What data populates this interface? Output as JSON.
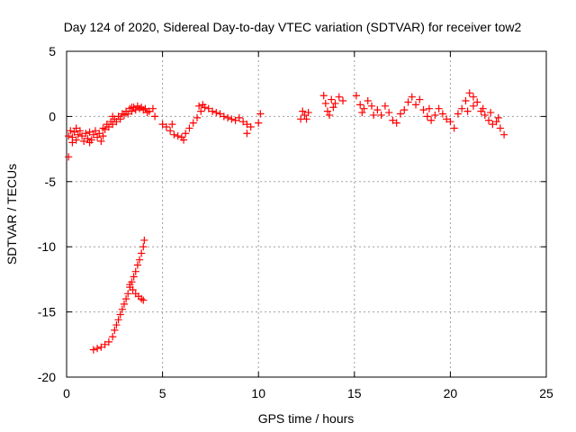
{
  "chart_data": {
    "type": "scatter",
    "title": "Day 124 of 2020, Sidereal Day-to-day VTEC variation (SDTVAR) for receiver tow2",
    "xlabel": "GPS time / hours",
    "ylabel": "SDTVAR / TECUs",
    "xlim": [
      0,
      25
    ],
    "ylim": [
      -20,
      5
    ],
    "xticks": [
      0,
      5,
      10,
      15,
      20,
      25
    ],
    "yticks": [
      -20,
      -15,
      -10,
      -5,
      0,
      5
    ],
    "xtick_labels": [
      "0",
      "5",
      "10",
      "15",
      "20",
      "25"
    ],
    "ytick_labels": [
      "-20",
      "-15",
      "-10",
      "-5",
      "0",
      "5"
    ],
    "grid": true,
    "marker": "plus",
    "series": [
      {
        "name": "main_trace",
        "color": "#ff0000",
        "points": [
          [
            0.1,
            -1.5
          ],
          [
            0.2,
            -1.1
          ],
          [
            0.3,
            -1.6
          ],
          [
            0.4,
            -1.2
          ],
          [
            0.5,
            -1.8
          ],
          [
            0.6,
            -1.4
          ],
          [
            0.7,
            -1.1
          ],
          [
            0.8,
            -1.5
          ],
          [
            0.9,
            -1.9
          ],
          [
            1.0,
            -1.3
          ],
          [
            1.1,
            -1.7
          ],
          [
            1.2,
            -1.2
          ],
          [
            1.3,
            -1.8
          ],
          [
            1.4,
            -1.4
          ],
          [
            1.5,
            -1.1
          ],
          [
            1.6,
            -1.6
          ],
          [
            1.7,
            -1.3
          ],
          [
            1.8,
            -1.9
          ],
          [
            1.9,
            -1.5
          ],
          [
            2.0,
            -1.0
          ],
          [
            2.1,
            -0.6
          ],
          [
            2.2,
            -0.8
          ],
          [
            2.3,
            -0.4
          ],
          [
            2.4,
            -0.6
          ],
          [
            2.5,
            -0.2
          ],
          [
            2.6,
            -0.4
          ],
          [
            2.7,
            0.0
          ],
          [
            2.8,
            -0.2
          ],
          [
            2.9,
            0.2
          ],
          [
            3.0,
            0.1
          ],
          [
            3.1,
            0.4
          ],
          [
            3.2,
            0.2
          ],
          [
            3.3,
            0.6
          ],
          [
            3.4,
            0.4
          ],
          [
            3.5,
            0.7
          ],
          [
            3.6,
            0.5
          ],
          [
            3.7,
            0.8
          ],
          [
            3.8,
            0.6
          ],
          [
            3.9,
            0.7
          ],
          [
            4.0,
            0.5
          ],
          [
            4.1,
            0.6
          ],
          [
            4.2,
            0.3
          ],
          [
            4.3,
            0.4
          ],
          [
            4.5,
            0.6
          ],
          [
            5.0,
            -0.6
          ],
          [
            5.2,
            -0.8
          ],
          [
            5.4,
            -1.1
          ],
          [
            5.6,
            -1.4
          ],
          [
            5.8,
            -1.5
          ],
          [
            6.0,
            -1.6
          ],
          [
            6.2,
            -1.3
          ],
          [
            6.4,
            -0.9
          ],
          [
            6.6,
            -0.5
          ],
          [
            6.8,
            -0.1
          ],
          [
            7.0,
            0.4
          ],
          [
            7.2,
            0.7
          ],
          [
            7.4,
            0.6
          ],
          [
            7.6,
            0.4
          ],
          [
            7.8,
            0.3
          ],
          [
            8.0,
            0.2
          ],
          [
            8.2,
            0.0
          ],
          [
            8.4,
            -0.1
          ],
          [
            8.6,
            -0.2
          ],
          [
            8.8,
            -0.3
          ],
          [
            9.0,
            -0.1
          ],
          [
            9.2,
            -0.4
          ],
          [
            9.4,
            -0.6
          ],
          [
            9.6,
            -0.8
          ],
          [
            10.0,
            -0.5
          ],
          [
            10.1,
            0.2
          ],
          [
            12.3,
            0.4
          ],
          [
            12.4,
            0.1
          ],
          [
            12.5,
            -0.2
          ],
          [
            12.6,
            0.3
          ],
          [
            13.4,
            1.6
          ],
          [
            13.5,
            1.0
          ],
          [
            13.6,
            0.4
          ],
          [
            13.7,
            0.1
          ],
          [
            13.8,
            1.3
          ],
          [
            13.9,
            0.7
          ],
          [
            14.0,
            1.0
          ],
          [
            14.2,
            1.5
          ],
          [
            14.4,
            1.2
          ],
          [
            15.1,
            1.6
          ],
          [
            15.3,
            0.9
          ],
          [
            15.5,
            0.6
          ],
          [
            15.7,
            1.2
          ],
          [
            15.9,
            0.8
          ],
          [
            16.2,
            0.5
          ],
          [
            16.4,
            0.1
          ],
          [
            16.6,
            0.8
          ],
          [
            16.8,
            0.3
          ],
          [
            17.0,
            -0.3
          ],
          [
            17.2,
            -0.5
          ],
          [
            17.4,
            0.2
          ],
          [
            17.6,
            0.5
          ],
          [
            17.8,
            1.1
          ],
          [
            18.0,
            1.5
          ],
          [
            18.2,
            0.9
          ],
          [
            18.4,
            1.3
          ],
          [
            18.6,
            0.5
          ],
          [
            18.8,
            0.0
          ],
          [
            19.0,
            -0.3
          ],
          [
            19.2,
            0.1
          ],
          [
            19.4,
            0.6
          ],
          [
            19.6,
            0.2
          ],
          [
            20.0,
            -0.4
          ],
          [
            20.2,
            -0.9
          ],
          [
            20.4,
            0.2
          ],
          [
            20.6,
            0.6
          ],
          [
            20.8,
            1.2
          ],
          [
            21.0,
            1.8
          ],
          [
            21.2,
            1.5
          ],
          [
            21.4,
            1.1
          ],
          [
            21.6,
            0.4
          ],
          [
            21.8,
            0.1
          ],
          [
            22.0,
            -0.3
          ],
          [
            22.2,
            -0.6
          ],
          [
            22.4,
            -0.4
          ],
          [
            22.6,
            -0.9
          ],
          [
            22.8,
            -1.4
          ],
          [
            0.1,
            -3.1
          ],
          [
            0.3,
            -2.0
          ],
          [
            0.5,
            -0.9
          ],
          [
            1.2,
            -2.0
          ],
          [
            1.9,
            -0.9
          ],
          [
            4.6,
            0.0
          ],
          [
            21.2,
            0.8
          ],
          [
            21.7,
            0.6
          ],
          [
            22.1,
            0.3
          ],
          [
            22.5,
            -0.1
          ],
          [
            20.9,
            0.4
          ],
          [
            15.4,
            0.3
          ],
          [
            16.0,
            0.1
          ],
          [
            18.9,
            0.6
          ],
          [
            19.8,
            -0.2
          ],
          [
            12.2,
            -0.2
          ],
          [
            9.4,
            -1.3
          ],
          [
            7.1,
            0.9
          ],
          [
            6.9,
            0.8
          ],
          [
            6.1,
            -1.8
          ],
          [
            5.5,
            -0.6
          ],
          [
            2.4,
            0.0
          ],
          [
            3.4,
            0.7
          ]
        ]
      },
      {
        "name": "lower_trace",
        "color": "#ff0000",
        "points": [
          [
            1.4,
            -17.9
          ],
          [
            1.6,
            -17.8
          ],
          [
            1.8,
            -17.7
          ],
          [
            2.0,
            -17.5
          ],
          [
            2.2,
            -17.3
          ],
          [
            2.4,
            -16.9
          ],
          [
            2.5,
            -16.4
          ],
          [
            2.6,
            -16.0
          ],
          [
            2.7,
            -15.6
          ],
          [
            2.8,
            -15.2
          ],
          [
            2.9,
            -14.8
          ],
          [
            3.0,
            -14.4
          ],
          [
            3.1,
            -14.0
          ],
          [
            3.2,
            -13.6
          ],
          [
            3.3,
            -13.1
          ],
          [
            3.4,
            -12.7
          ],
          [
            3.5,
            -12.3
          ],
          [
            3.6,
            -11.9
          ],
          [
            3.7,
            -11.4
          ],
          [
            3.8,
            -11.0
          ],
          [
            3.9,
            -10.5
          ],
          [
            4.0,
            -10.0
          ],
          [
            4.05,
            -9.5
          ],
          [
            3.3,
            -12.9
          ],
          [
            3.45,
            -13.3
          ],
          [
            3.6,
            -13.6
          ],
          [
            3.75,
            -13.8
          ],
          [
            3.9,
            -14.0
          ],
          [
            4.0,
            -14.1
          ]
        ]
      }
    ]
  }
}
